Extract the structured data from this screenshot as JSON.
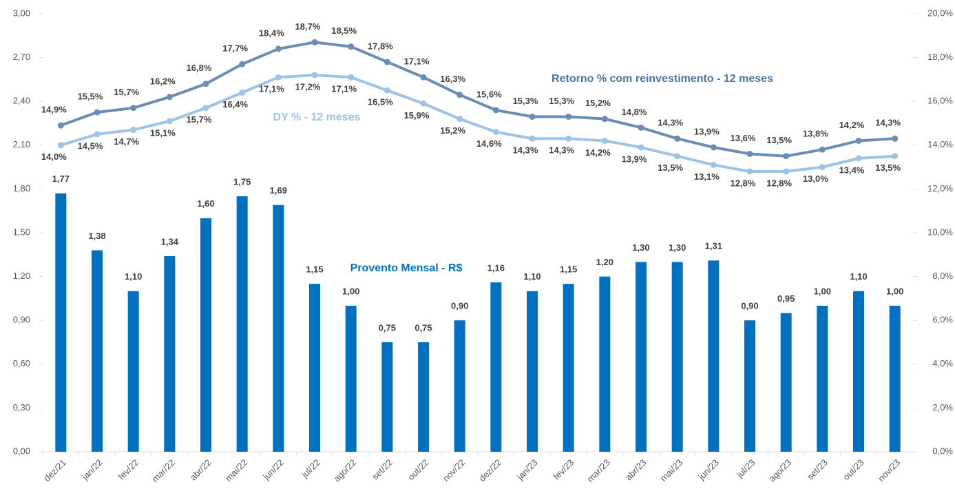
{
  "chart_data": {
    "type": "bar",
    "categories": [
      "dez/21",
      "jan/22",
      "fev/22",
      "mar/22",
      "abr/22",
      "mai/22",
      "jun/22",
      "jul/22",
      "ago/22",
      "set/22",
      "out/22",
      "nov/22",
      "dez/22",
      "jan/23",
      "fev/23",
      "mar/23",
      "abr/23",
      "mai/23",
      "jun/23",
      "jul/23",
      "ago/23",
      "set/23",
      "out/23",
      "nov/23"
    ],
    "series": [
      {
        "name": "Provento Mensal - R$",
        "type": "bar",
        "color": "#0070c0",
        "values": [
          1.77,
          1.38,
          1.1,
          1.34,
          1.6,
          1.75,
          1.69,
          1.15,
          1.0,
          0.75,
          0.75,
          0.9,
          1.16,
          1.1,
          1.15,
          1.2,
          1.3,
          1.3,
          1.31,
          0.9,
          0.95,
          1.0,
          1.1,
          1.0
        ],
        "value_labels": [
          "1,77",
          "1,38",
          "1,10",
          "1,34",
          "1,60",
          "1,75",
          "1,69",
          "1,15",
          "1,00",
          "0,75",
          "0,75",
          "0,90",
          "1,16",
          "1,10",
          "1,15",
          "1,20",
          "1,30",
          "1,30",
          "1,31",
          "0,90",
          "0,95",
          "1,00",
          "1,10",
          "1,00"
        ]
      },
      {
        "name": "Retorno % com reinvestimento - 12 meses",
        "type": "line",
        "axis": "y2",
        "color": "#6b8db5",
        "values": [
          14.9,
          15.5,
          15.7,
          16.2,
          16.8,
          17.7,
          18.4,
          18.7,
          18.5,
          17.8,
          17.1,
          16.3,
          15.6,
          15.3,
          15.3,
          15.2,
          14.8,
          14.3,
          13.9,
          13.6,
          13.5,
          13.8,
          14.2,
          14.3
        ],
        "value_labels": [
          "14,9%",
          "15,5%",
          "15,7%",
          "16,2%",
          "16,8%",
          "17,7%",
          "18,4%",
          "18,7%",
          "18,5%",
          "17,8%",
          "17,1%",
          "16,3%",
          "15,6%",
          "15,3%",
          "15,3%",
          "15,2%",
          "14,8%",
          "14,3%",
          "13,9%",
          "13,6%",
          "13,5%",
          "13,8%",
          "14,2%",
          "14,3%"
        ]
      },
      {
        "name": "DY % - 12 meses",
        "type": "line",
        "axis": "y2",
        "color": "#9dc3e6",
        "values": [
          14.0,
          14.5,
          14.7,
          15.1,
          15.7,
          16.4,
          17.1,
          17.2,
          17.1,
          16.5,
          15.9,
          15.2,
          14.6,
          14.3,
          14.3,
          14.2,
          13.9,
          13.5,
          13.1,
          12.8,
          12.8,
          13.0,
          13.4,
          13.5
        ],
        "value_labels": [
          "14,0%",
          "14,5%",
          "14,7%",
          "15,1%",
          "15,7%",
          "16,4%",
          "17,1%",
          "17,2%",
          "17,1%",
          "16,5%",
          "15,9%",
          "15,2%",
          "14,6%",
          "14,3%",
          "14,3%",
          "14,2%",
          "13,9%",
          "13,5%",
          "13,1%",
          "12,8%",
          "12,8%",
          "13,0%",
          "13,4%",
          "13,5%"
        ]
      }
    ],
    "ylim": [
      0,
      3
    ],
    "yticks": [
      {
        "value": 0,
        "label": "0,00"
      },
      {
        "value": 0.3,
        "label": "0,30"
      },
      {
        "value": 0.6,
        "label": "0,60"
      },
      {
        "value": 0.9,
        "label": "0,90"
      },
      {
        "value": 1.2,
        "label": "1,20"
      },
      {
        "value": 1.5,
        "label": "1,50"
      },
      {
        "value": 1.8,
        "label": "1,80"
      },
      {
        "value": 2.1,
        "label": "2,10"
      },
      {
        "value": 2.4,
        "label": "2,40"
      },
      {
        "value": 2.7,
        "label": "2,70"
      },
      {
        "value": 3,
        "label": "3,00"
      }
    ],
    "y2lim": [
      0,
      20
    ],
    "y2ticks": [
      {
        "value": 0,
        "label": "0,0%"
      },
      {
        "value": 2,
        "label": "2,0%"
      },
      {
        "value": 4,
        "label": "4,0%"
      },
      {
        "value": 6,
        "label": "6,0%"
      },
      {
        "value": 8,
        "label": "8,0%"
      },
      {
        "value": 10,
        "label": "10,0%"
      },
      {
        "value": 12,
        "label": "12,0%"
      },
      {
        "value": 14,
        "label": "14,0%"
      },
      {
        "value": 16,
        "label": "16,0%"
      },
      {
        "value": 18,
        "label": "18,0%"
      },
      {
        "value": 20,
        "label": "20,0%"
      }
    ],
    "grid": false
  }
}
